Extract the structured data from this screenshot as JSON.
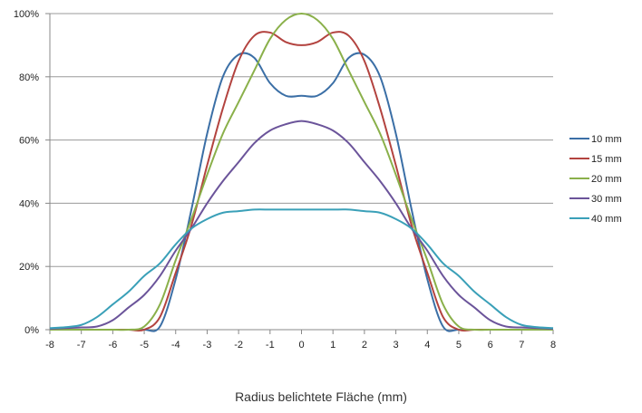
{
  "chart_data": {
    "type": "line",
    "xlabel": "Radius belichtete Fläche (mm)",
    "ylabel": "",
    "xlim": [
      -8,
      8
    ],
    "ylim": [
      0,
      100
    ],
    "x_ticks": [
      "-8",
      "-7",
      "-6",
      "-5",
      "-4",
      "-3",
      "-2",
      "-1",
      "0",
      "1",
      "2",
      "3",
      "4",
      "5",
      "6",
      "7",
      "8"
    ],
    "y_ticks": [
      "0%",
      "20%",
      "40%",
      "60%",
      "80%",
      "100%"
    ],
    "grid": "horizontal",
    "legend_position": "right",
    "x": [
      -8,
      -7.5,
      -7,
      -6.5,
      -6,
      -5.5,
      -5,
      -4.5,
      -4,
      -3.5,
      -3,
      -2.5,
      -2,
      -1.5,
      -1,
      -0.5,
      0,
      0.5,
      1,
      1.5,
      2,
      2.5,
      3,
      3.5,
      4,
      4.5,
      5,
      5.5,
      6,
      6.5,
      7,
      7.5,
      8
    ],
    "series": [
      {
        "name": "10 mm",
        "color": "#3b6fa6",
        "values": [
          0,
          0,
          0,
          0,
          0,
          0,
          0,
          1,
          16,
          38,
          62,
          80,
          87,
          86,
          78,
          74,
          74,
          74,
          78,
          86,
          87,
          80,
          62,
          38,
          16,
          1,
          0,
          0,
          0,
          0,
          0,
          0,
          0
        ]
      },
      {
        "name": "15 mm",
        "color": "#b3433f",
        "values": [
          0,
          0,
          0,
          0,
          0,
          0,
          0,
          4,
          18,
          33,
          52,
          70,
          85,
          93,
          94,
          91,
          90,
          91,
          94,
          93,
          85,
          70,
          52,
          33,
          18,
          4,
          0,
          0,
          0,
          0,
          0,
          0,
          0
        ]
      },
      {
        "name": "20 mm",
        "color": "#8ab04a",
        "values": [
          0,
          0,
          0,
          0,
          0,
          0,
          1,
          8,
          22,
          35,
          49,
          62,
          72,
          82,
          92,
          98,
          100,
          98,
          92,
          82,
          72,
          62,
          49,
          35,
          22,
          8,
          1,
          0,
          0,
          0,
          0,
          0,
          0
        ]
      },
      {
        "name": "30 mm",
        "color": "#6b549a",
        "values": [
          0.3,
          0.5,
          0.7,
          1,
          3,
          7,
          11,
          17,
          25,
          32,
          40,
          47,
          53,
          59,
          63,
          65,
          66,
          65,
          63,
          59,
          53,
          47,
          40,
          32,
          25,
          17,
          11,
          7,
          3,
          1,
          0.7,
          0.5,
          0.3
        ]
      },
      {
        "name": "40 mm",
        "color": "#3aa0b8",
        "values": [
          0.5,
          0.8,
          1.5,
          4,
          8,
          12,
          17,
          21,
          27,
          32,
          35,
          37,
          37.5,
          38,
          38,
          38,
          38,
          38,
          38,
          38,
          37.5,
          37,
          35,
          32,
          27,
          21,
          17,
          12,
          8,
          4,
          1.5,
          0.8,
          0.5
        ]
      }
    ]
  }
}
